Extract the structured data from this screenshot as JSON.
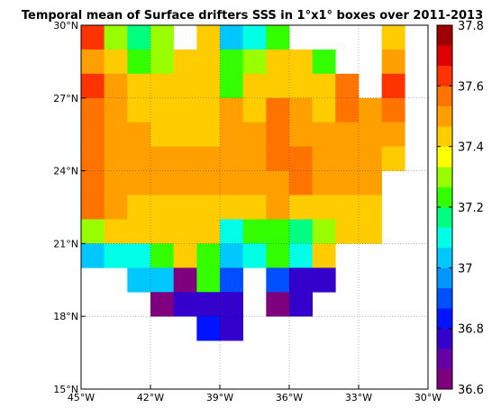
{
  "chart_data": {
    "type": "heatmap",
    "title": "Temporal mean of Surface drifters SSS in 1°x1° boxes over 2011-2013",
    "xlabel": "",
    "ylabel": "",
    "x_range": [
      -45,
      -30
    ],
    "y_range": [
      15,
      30
    ],
    "cell_size_deg": 1,
    "x_ticks": [
      {
        "value": -45,
        "label": "45°W"
      },
      {
        "value": -42,
        "label": "42°W"
      },
      {
        "value": -39,
        "label": "39°W"
      },
      {
        "value": -36,
        "label": "36°W"
      },
      {
        "value": -33,
        "label": "33°W"
      },
      {
        "value": -30,
        "label": "30°W"
      }
    ],
    "y_ticks": [
      {
        "value": 15,
        "label": "15°N"
      },
      {
        "value": 18,
        "label": "18°N"
      },
      {
        "value": 21,
        "label": "21°N"
      },
      {
        "value": 24,
        "label": "24°N"
      },
      {
        "value": 27,
        "label": "27°N"
      },
      {
        "value": 30,
        "label": "30°N"
      }
    ],
    "grid": true,
    "grid_style": "dotted",
    "colorbar": {
      "min": 36.6,
      "max": 37.8,
      "ticks": [
        {
          "value": 36.6,
          "label": "36.6"
        },
        {
          "value": 36.8,
          "label": "36.8"
        },
        {
          "value": 37.0,
          "label": "37"
        },
        {
          "value": 37.2,
          "label": "37.2"
        },
        {
          "value": 37.4,
          "label": "37.4"
        },
        {
          "value": 37.6,
          "label": "37.6"
        },
        {
          "value": 37.8,
          "label": "37.8"
        }
      ],
      "levels": 16,
      "colormap": [
        "#7f007f",
        "#6600a6",
        "#3300cc",
        "#0014ff",
        "#0050ff",
        "#0096ff",
        "#00c8ff",
        "#00ffe6",
        "#00ff80",
        "#33ff00",
        "#99ff00",
        "#ffff00",
        "#ffcc00",
        "#ffa000",
        "#ff7300",
        "#ff3300",
        "#e00000",
        "#a00000"
      ]
    },
    "x_centers": [
      -44.5,
      -43.5,
      -42.5,
      -41.5,
      -40.5,
      -39.5,
      -38.5,
      -37.5,
      -36.5,
      -35.5,
      -34.5,
      -33.5,
      -32.5,
      -31.5,
      -30.5
    ],
    "y_centers": [
      29.5,
      28.5,
      27.5,
      26.5,
      25.5,
      24.5,
      23.5,
      22.5,
      21.5,
      20.5,
      19.5,
      18.5,
      17.5,
      16.5,
      15.5
    ],
    "values": [
      [
        37.6,
        37.3,
        37.15,
        37.3,
        null,
        37.4,
        37.05,
        37.12,
        37.22,
        null,
        null,
        null,
        null,
        37.45,
        null
      ],
      [
        37.5,
        37.45,
        37.25,
        37.3,
        37.4,
        37.4,
        37.2,
        37.3,
        37.45,
        37.45,
        37.25,
        null,
        null,
        37.5,
        null
      ],
      [
        37.65,
        37.5,
        37.45,
        37.4,
        37.4,
        37.4,
        37.25,
        37.4,
        37.45,
        37.45,
        37.45,
        37.55,
        null,
        37.65,
        null
      ],
      [
        37.55,
        37.5,
        37.45,
        37.45,
        37.4,
        37.45,
        37.5,
        37.45,
        37.55,
        37.5,
        37.4,
        37.55,
        37.5,
        37.55,
        null
      ],
      [
        37.55,
        37.5,
        37.5,
        37.45,
        37.45,
        37.45,
        37.5,
        37.5,
        37.55,
        37.5,
        37.5,
        37.5,
        37.5,
        37.5,
        null
      ],
      [
        37.55,
        37.5,
        37.5,
        37.5,
        37.5,
        37.5,
        37.5,
        37.5,
        37.55,
        37.55,
        37.5,
        37.5,
        37.5,
        37.45,
        null
      ],
      [
        37.55,
        37.5,
        37.5,
        37.5,
        37.5,
        37.5,
        37.5,
        37.5,
        37.5,
        37.55,
        37.5,
        37.5,
        37.5,
        null,
        null
      ],
      [
        37.55,
        37.5,
        37.45,
        37.45,
        37.4,
        37.45,
        37.45,
        37.45,
        37.5,
        37.45,
        37.45,
        37.45,
        37.45,
        null,
        null
      ],
      [
        37.3,
        37.4,
        37.45,
        37.4,
        37.4,
        37.4,
        37.1,
        37.2,
        37.2,
        37.15,
        37.3,
        37.45,
        37.45,
        null,
        null
      ],
      [
        37.05,
        37.1,
        37.1,
        37.2,
        37.4,
        37.25,
        37.0,
        37.1,
        37.2,
        37.1,
        37.45,
        null,
        null,
        null,
        null
      ],
      [
        null,
        null,
        37.0,
        37.05,
        36.65,
        37.2,
        36.9,
        null,
        36.9,
        36.8,
        36.75,
        null,
        null,
        null,
        null
      ],
      [
        null,
        null,
        null,
        36.65,
        36.75,
        36.75,
        36.8,
        null,
        36.65,
        36.75,
        null,
        null,
        null,
        null,
        null
      ],
      [
        null,
        null,
        null,
        null,
        null,
        36.85,
        36.8,
        null,
        null,
        null,
        null,
        null,
        null,
        null,
        null
      ],
      [
        null,
        null,
        null,
        null,
        null,
        null,
        null,
        null,
        null,
        null,
        null,
        null,
        null,
        null,
        null
      ],
      [
        null,
        null,
        null,
        null,
        null,
        null,
        null,
        null,
        null,
        null,
        null,
        null,
        null,
        null,
        null
      ]
    ]
  }
}
